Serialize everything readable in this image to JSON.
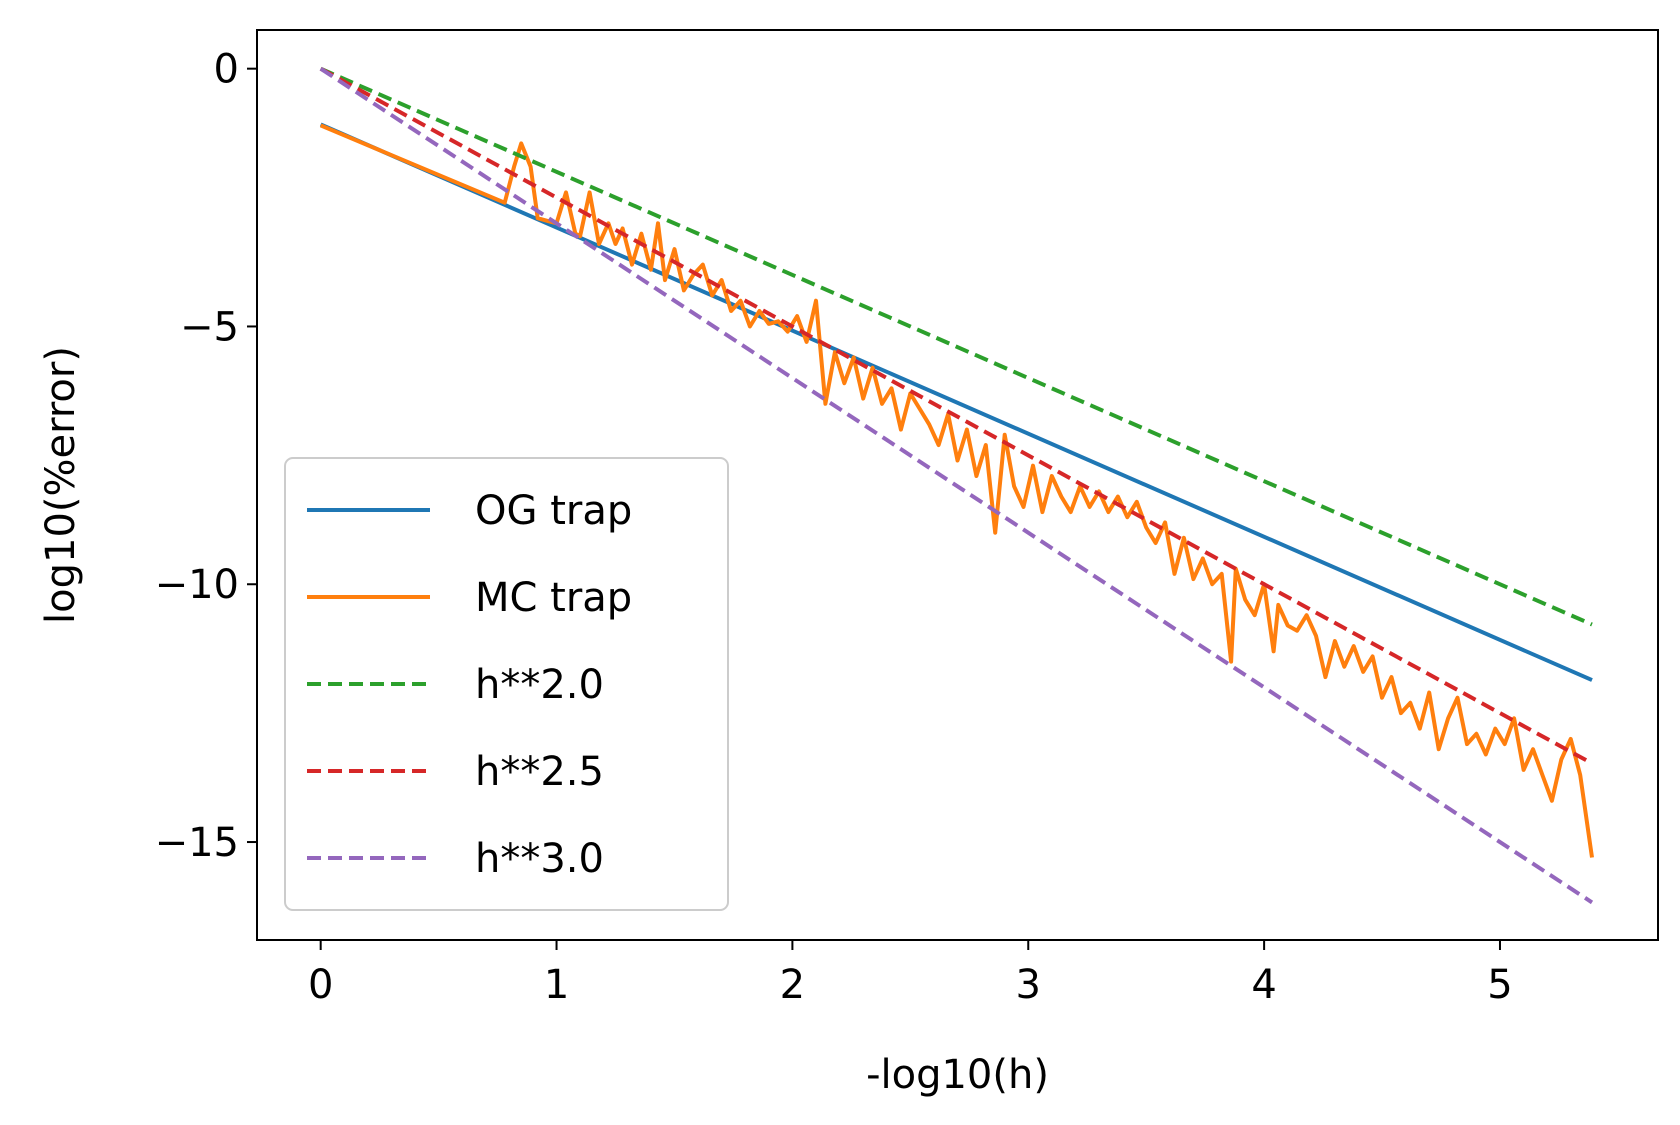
{
  "chart_data": {
    "type": "line",
    "title": "",
    "xlabel": "-log10(h)",
    "ylabel": "log10(%error)",
    "xlim": [
      -0.27,
      5.67
    ],
    "ylim": [
      -16.9,
      0.75
    ],
    "xticks": [
      0,
      1,
      2,
      3,
      4,
      5
    ],
    "xtick_labels": [
      "0",
      "1",
      "2",
      "3",
      "4",
      "5"
    ],
    "yticks": [
      0,
      -5,
      -10,
      -15
    ],
    "ytick_labels": [
      "0",
      "−5",
      "−10",
      "−15"
    ],
    "grid": false,
    "legend_position": "lower-left",
    "series": [
      {
        "name": "OG trap",
        "color": "#1f77b4",
        "style": "solid",
        "x": [
          0.0,
          5.39
        ],
        "y": [
          -1.08,
          -11.86
        ]
      },
      {
        "name": "MC trap",
        "color": "#ff7f0e",
        "style": "solid",
        "x": [
          0.0,
          0.78,
          0.82,
          0.85,
          0.89,
          0.92,
          0.96,
          1.0,
          1.04,
          1.08,
          1.1,
          1.14,
          1.18,
          1.22,
          1.25,
          1.28,
          1.32,
          1.36,
          1.4,
          1.43,
          1.46,
          1.5,
          1.54,
          1.58,
          1.62,
          1.66,
          1.7,
          1.74,
          1.78,
          1.82,
          1.86,
          1.9,
          1.94,
          1.98,
          2.02,
          2.06,
          2.1,
          2.14,
          2.18,
          2.22,
          2.26,
          2.3,
          2.34,
          2.38,
          2.42,
          2.46,
          2.5,
          2.54,
          2.58,
          2.62,
          2.66,
          2.7,
          2.74,
          2.78,
          2.82,
          2.86,
          2.9,
          2.94,
          2.98,
          3.02,
          3.06,
          3.1,
          3.14,
          3.18,
          3.22,
          3.26,
          3.3,
          3.34,
          3.38,
          3.42,
          3.46,
          3.5,
          3.54,
          3.58,
          3.62,
          3.66,
          3.7,
          3.74,
          3.78,
          3.82,
          3.86,
          3.88,
          3.92,
          3.96,
          4.0,
          4.04,
          4.06,
          4.1,
          4.14,
          4.18,
          4.22,
          4.26,
          4.3,
          4.34,
          4.38,
          4.42,
          4.46,
          4.5,
          4.54,
          4.58,
          4.62,
          4.66,
          4.7,
          4.74,
          4.78,
          4.82,
          4.86,
          4.9,
          4.94,
          4.98,
          5.02,
          5.06,
          5.1,
          5.14,
          5.18,
          5.22,
          5.26,
          5.3,
          5.34,
          5.39
        ],
        "y": [
          -1.1,
          -2.6,
          -1.9,
          -1.45,
          -1.9,
          -2.9,
          -2.95,
          -3.0,
          -2.4,
          -3.2,
          -3.25,
          -2.4,
          -3.4,
          -3.0,
          -3.4,
          -3.1,
          -3.8,
          -3.2,
          -3.9,
          -3.0,
          -4.1,
          -3.5,
          -4.3,
          -4.0,
          -3.8,
          -4.4,
          -4.1,
          -4.7,
          -4.5,
          -5.0,
          -4.7,
          -4.95,
          -4.9,
          -5.1,
          -4.8,
          -5.3,
          -4.5,
          -6.5,
          -5.5,
          -6.1,
          -5.6,
          -6.4,
          -5.8,
          -6.5,
          -6.2,
          -7.0,
          -6.3,
          -6.6,
          -6.9,
          -7.3,
          -6.7,
          -7.6,
          -7.0,
          -7.9,
          -7.3,
          -9.0,
          -7.1,
          -8.1,
          -8.5,
          -7.7,
          -8.6,
          -7.9,
          -8.3,
          -8.6,
          -8.1,
          -8.5,
          -8.2,
          -8.6,
          -8.3,
          -8.7,
          -8.4,
          -8.9,
          -9.2,
          -8.8,
          -9.8,
          -9.1,
          -9.9,
          -9.5,
          -10.0,
          -9.8,
          -11.5,
          -9.7,
          -10.3,
          -10.6,
          -10.0,
          -11.3,
          -10.4,
          -10.8,
          -10.9,
          -10.6,
          -11.0,
          -11.8,
          -11.1,
          -11.6,
          -11.2,
          -11.7,
          -11.4,
          -12.2,
          -11.8,
          -12.5,
          -12.3,
          -12.8,
          -12.1,
          -13.2,
          -12.6,
          -12.2,
          -13.1,
          -12.9,
          -13.3,
          -12.8,
          -13.1,
          -12.6,
          -13.6,
          -13.2,
          -13.7,
          -14.2,
          -13.4,
          -13.0,
          -13.7,
          -15.3
        ]
      },
      {
        "name": "h**2.0",
        "color": "#2ca02c",
        "style": "dashed",
        "x": [
          0.0,
          5.39
        ],
        "y": [
          0.0,
          -10.78
        ]
      },
      {
        "name": "h**2.5",
        "color": "#d62728",
        "style": "dashed",
        "x": [
          0.0,
          5.39
        ],
        "y": [
          0.0,
          -13.475
        ]
      },
      {
        "name": "h**3.0",
        "color": "#9467bd",
        "style": "dashed",
        "x": [
          0.0,
          5.39
        ],
        "y": [
          0.0,
          -16.17
        ]
      }
    ]
  }
}
